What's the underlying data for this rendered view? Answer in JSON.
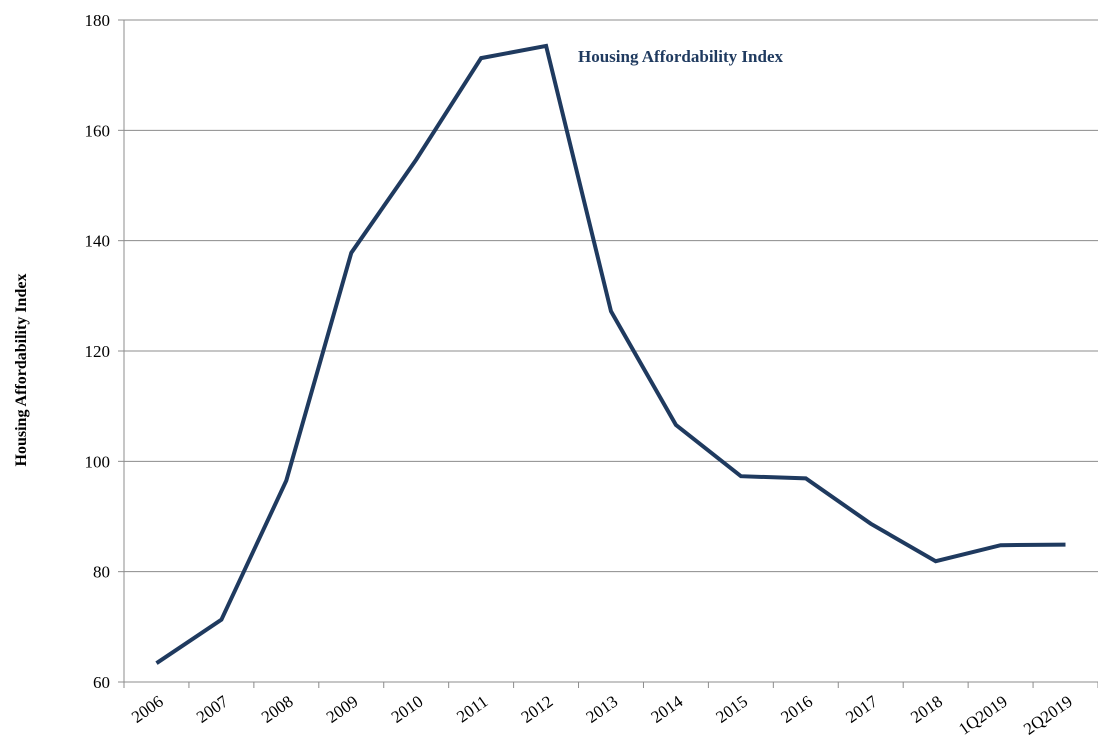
{
  "chart_data": {
    "type": "line",
    "title": "",
    "xlabel": "",
    "ylabel": "Housing Affordability Index",
    "categories": [
      "2006",
      "2007",
      "2008",
      "2009",
      "2010",
      "2011",
      "2012",
      "2013",
      "2014",
      "2015",
      "2016",
      "2017",
      "2018",
      "1Q2019",
      "2Q2019"
    ],
    "series": [
      {
        "name": "Housing Affordability Index",
        "values": [
          63.4,
          71.3,
          96.5,
          137.8,
          154.7,
          173.1,
          175.3,
          127.2,
          106.6,
          97.3,
          96.9,
          88.7,
          81.9,
          84.8,
          84.9
        ]
      }
    ],
    "ylim": [
      60,
      180
    ],
    "yticks": [
      60,
      80,
      100,
      120,
      140,
      160,
      180
    ],
    "grid": true,
    "legend": "inline-label-near-peak",
    "colors": {
      "line": "#1f3a5f",
      "label": "#1f3a5f",
      "grid": "#8c8c8c"
    }
  }
}
